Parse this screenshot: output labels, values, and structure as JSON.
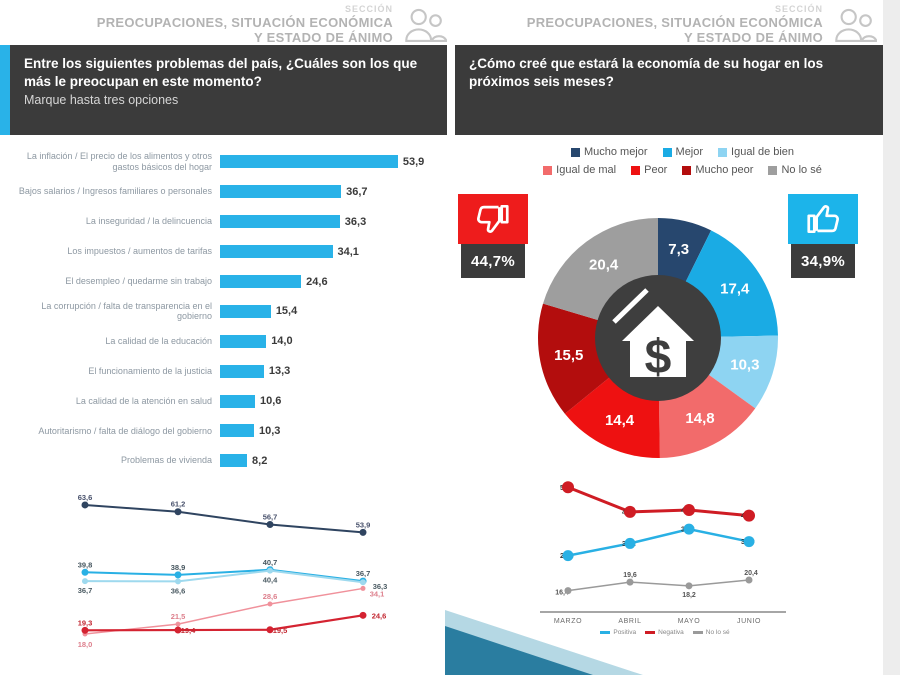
{
  "section_header": {
    "eyebrow": "SECCIÓN",
    "title_line1": "PREOCUPACIONES, SITUACIÓN ECONÓMICA",
    "title_line2": "Y ESTADO DE ÁNIMO"
  },
  "left_panel": {
    "question": "Entre los siguientes problemas del país, ¿Cuáles son los que más le preocupan en este momento?",
    "instruction": "Marque hasta tres opciones"
  },
  "right_panel": {
    "question": "¿Cómo creé que estará la economía de su hogar en los próximos seis meses?",
    "negative_value": "44,7%",
    "positive_value": "34,9%"
  },
  "chart_data": [
    {
      "type": "bar",
      "orientation": "horizontal",
      "categories": [
        "La inflación / El precio de los alimentos y otros gastos básicos del hogar",
        "Bajos salarios / Ingresos familiares o personales",
        "La inseguridad / la delincuencia",
        "Los impuestos / aumentos de tarifas",
        "El desempleo / quedarme sin trabajo",
        "La corrupción / falta de transparencia en el gobierno",
        "La calidad de la educación",
        "El funcionamiento de la justicia",
        "La calidad de la atención en salud",
        "Autoritarismo / falta de diálogo del gobierno",
        "Problemas de vivienda"
      ],
      "values": [
        53.9,
        36.7,
        36.3,
        34.1,
        24.6,
        15.4,
        14.0,
        13.3,
        10.6,
        10.3,
        8.2
      ],
      "bar_color": "#29b2e8",
      "xlim": [
        0,
        60
      ]
    },
    {
      "type": "line",
      "name": "problems-trend",
      "x_labels_visible": false,
      "series": [
        {
          "name": "La inflación",
          "color": "#2f4460",
          "values": [
            63.6,
            61.2,
            56.7,
            53.9
          ]
        },
        {
          "name": "Bajos salarios",
          "color": "#29b0e4",
          "values": [
            39.8,
            38.9,
            40.7,
            36.7
          ]
        },
        {
          "name": "La inseguridad",
          "color": "#9ed9ee",
          "values": [
            36.7,
            36.6,
            40.4,
            36.3
          ]
        },
        {
          "name": "Los impuestos",
          "color": "#f0919b",
          "values": [
            18.0,
            21.5,
            28.6,
            34.1
          ]
        },
        {
          "name": "El desempleo",
          "color": "#d42331",
          "values": [
            19.3,
            19.4,
            19.5,
            24.6
          ]
        }
      ]
    },
    {
      "type": "pie",
      "donut": true,
      "center_icon": "house-dollar",
      "slices": [
        {
          "label": "Mucho mejor",
          "color": "#27476e",
          "value": 7.3
        },
        {
          "label": "Mejor",
          "color": "#1aabe4",
          "value": 17.4
        },
        {
          "label": "Igual de bien",
          "color": "#8ed4f2",
          "value": 10.3
        },
        {
          "label": "Igual de mal",
          "color": "#f26b6b",
          "value": 14.8
        },
        {
          "label": "Peor",
          "color": "#ee1111",
          "value": 14.4
        },
        {
          "label": "Mucho peor",
          "color": "#b30d0d",
          "value": 15.5
        },
        {
          "label": "No lo sé",
          "color": "#9e9e9e",
          "value": 20.4
        }
      ]
    },
    {
      "type": "line",
      "name": "sentiment-trend",
      "categories": [
        "MARZO",
        "ABRIL",
        "MAYO",
        "JUNIO"
      ],
      "series": [
        {
          "name": "Positiva",
          "color": "#29b0e4",
          "values": [
            29.6,
            34.2,
            39.6,
            34.9
          ]
        },
        {
          "name": "Negativa",
          "color": "#cf1c24",
          "values": [
            55.4,
            46.1,
            46.8,
            44.7
          ]
        },
        {
          "name": "No lo sé",
          "color": "#9a9a9a",
          "values": [
            16.4,
            19.6,
            18.2,
            20.4
          ]
        }
      ]
    }
  ]
}
